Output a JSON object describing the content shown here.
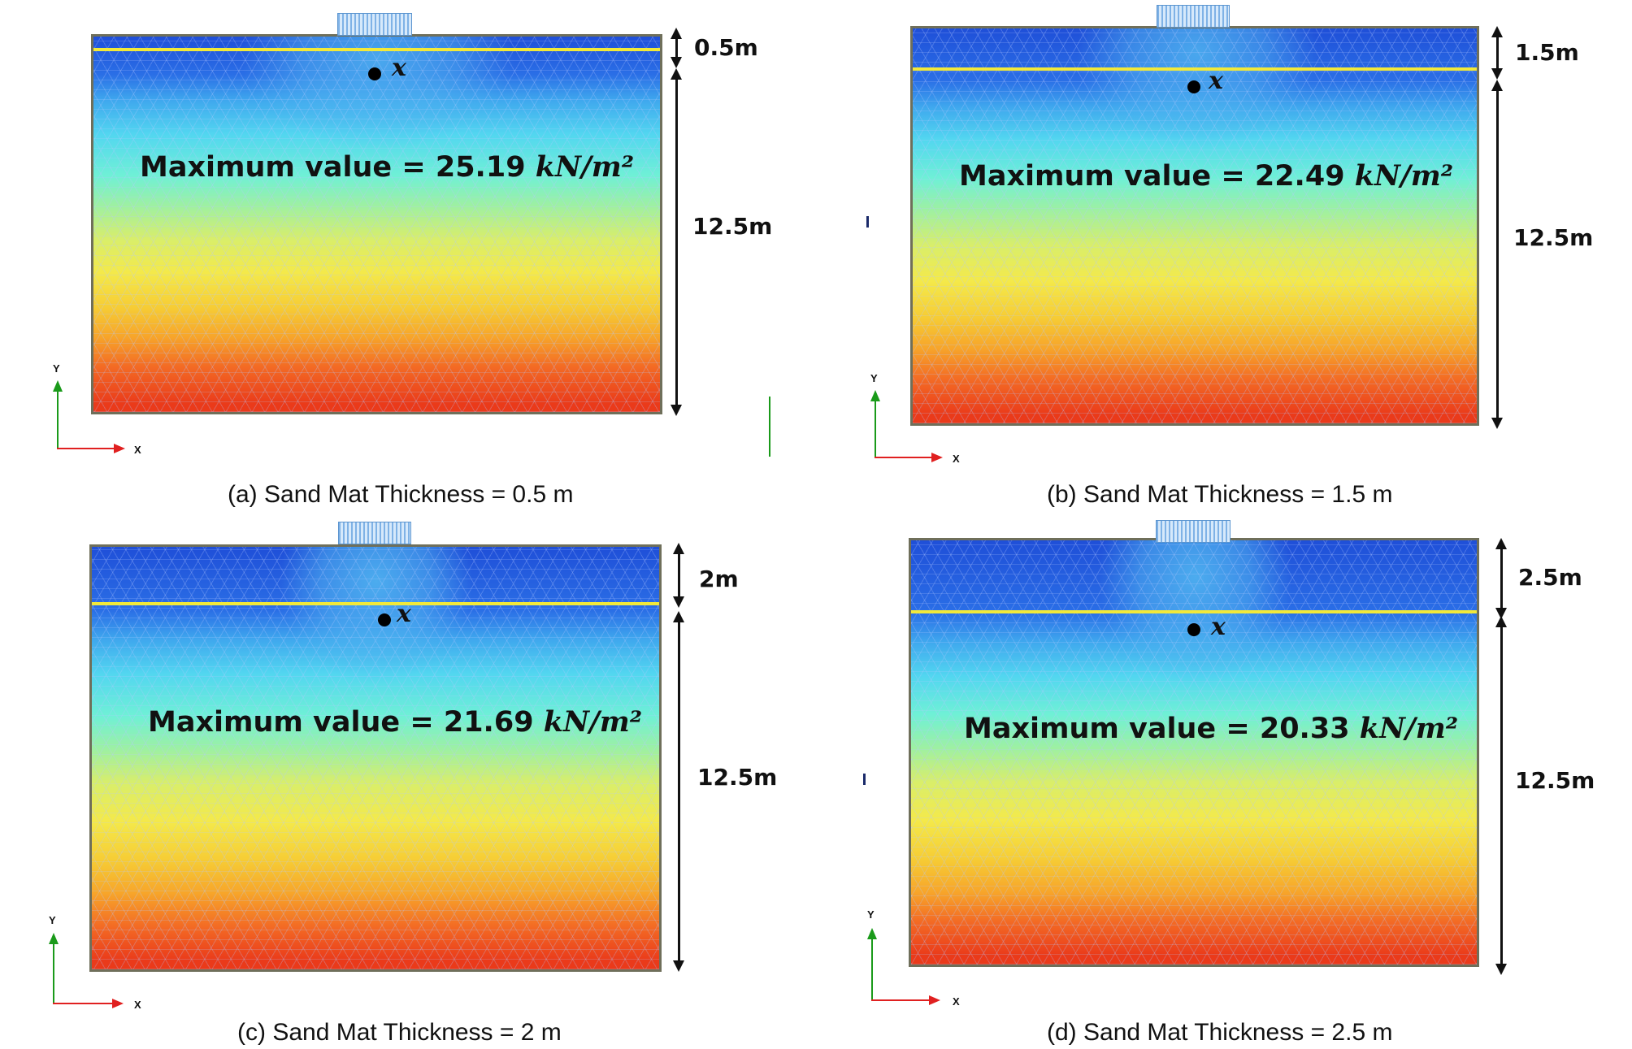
{
  "panels": [
    {
      "caption": "(a) Sand Mat Thickness = 0.5 m",
      "max_label": "Maximum value  =  25.19",
      "max_unit": "kN/m²",
      "sand_mat_label": "0.5m",
      "clay_label": "12.5m",
      "point_label": "x"
    },
    {
      "caption": "(b) Sand Mat Thickness = 1.5 m",
      "max_label": "Maximum value  =  22.49",
      "max_unit": "kN/m²",
      "sand_mat_label": "1.5m",
      "clay_label": "12.5m",
      "point_label": "x"
    },
    {
      "caption": "(c) Sand Mat Thickness = 2 m",
      "max_label": "Maximum value  =  21.69",
      "max_unit": "kN/m²",
      "sand_mat_label": "2m",
      "clay_label": "12.5m",
      "point_label": "x"
    },
    {
      "caption": "(d) Sand Mat Thickness = 2.5 m",
      "max_label": "Maximum value  =  20.33",
      "max_unit": "kN/m²",
      "sand_mat_label": "2.5m",
      "clay_label": "12.5m",
      "point_label": "x"
    }
  ],
  "axes": {
    "x": "X",
    "y": "Y"
  },
  "contour_colors": [
    "#1f4fd8",
    "#2a6ee6",
    "#3fa8ee",
    "#52d6f0",
    "#6ff0d6",
    "#9ef0a2",
    "#d9ee6a",
    "#f4e94a",
    "#f6cd35",
    "#f7a52a",
    "#f36a24",
    "#ea3a1a"
  ]
}
